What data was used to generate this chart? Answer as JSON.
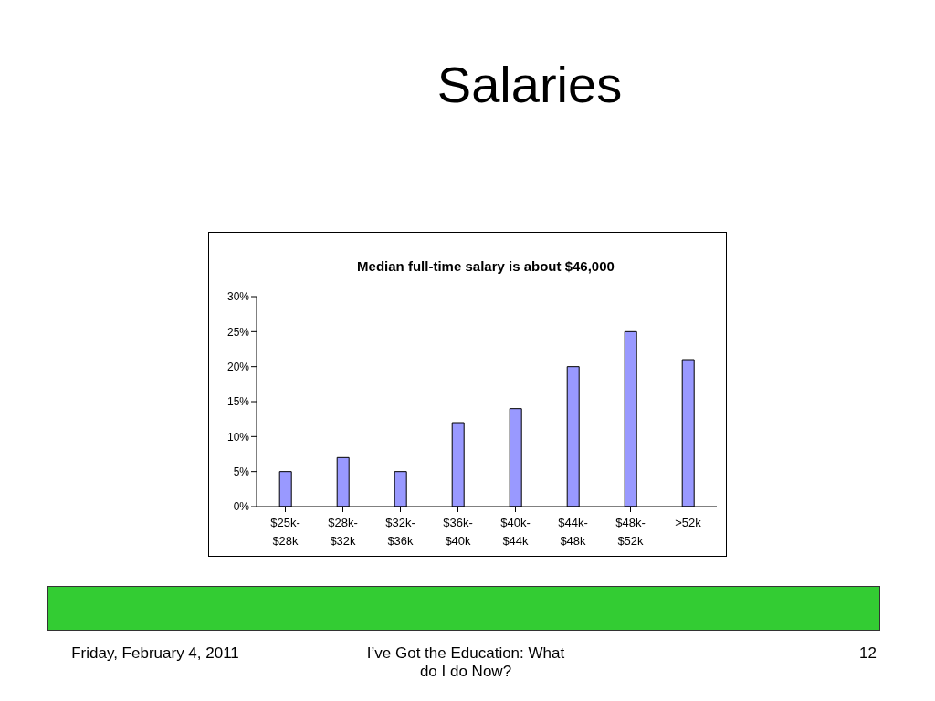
{
  "chart_data": {
    "type": "bar",
    "title": "Salaries",
    "subtitle": "Median full-time salary is about $46,000",
    "categories": [
      "$25k-$28k",
      "$28k-$32k",
      "$32k-$36k",
      "$36k-$40k",
      "$40k-$44k",
      "$44k-$48k",
      "$48k-$52k",
      ">52k"
    ],
    "values": [
      5,
      7,
      5,
      12,
      14,
      20,
      25,
      21
    ],
    "color": "#9999ff",
    "ylim": [
      0,
      30
    ],
    "yticks": [
      {
        "value": 0,
        "label": "0%"
      },
      {
        "value": 5,
        "label": "5%"
      },
      {
        "value": 10,
        "label": "10%"
      },
      {
        "value": 15,
        "label": "15%"
      },
      {
        "value": 20,
        "label": "20%"
      },
      {
        "value": 25,
        "label": "25%"
      },
      {
        "value": 30,
        "label": "30%"
      }
    ],
    "grid": false,
    "legend": false,
    "annotations": [
      "Friday, February 4, 2011",
      "I’ve Got the Education: What do I do Now?",
      "12"
    ]
  }
}
